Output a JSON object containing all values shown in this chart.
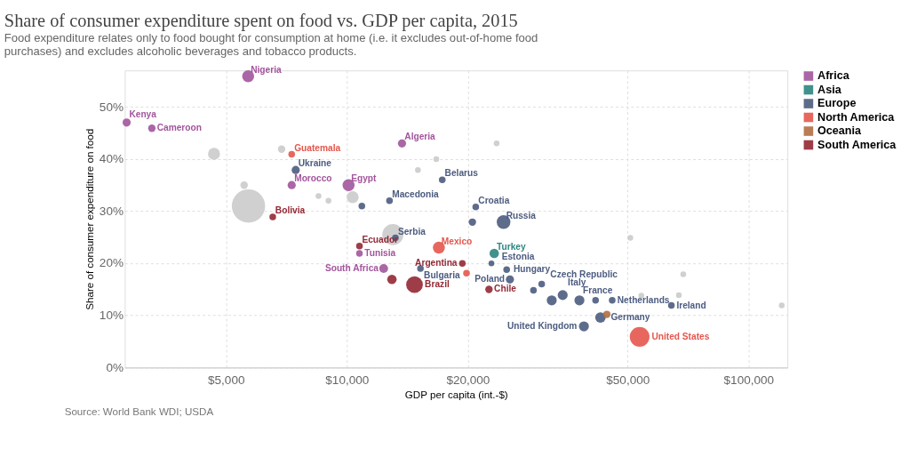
{
  "chart_data": {
    "type": "bubble",
    "title": "Share of consumer expenditure spent on food vs. GDP per capita, 2015",
    "subtitle": "Food expenditure relates only to food bought for consumption at home (i.e. it excludes out-of-home food\npurchases) and excludes alcoholic beverages and tobacco products.",
    "xlabel": "GDP per capita (int.-$)",
    "ylabel": "Share of consumer expenditure on food",
    "log": "x",
    "grid": true,
    "legend": "top right",
    "xlim": [
      2800,
      125000
    ],
    "ylim": [
      0,
      57
    ],
    "xticks": [
      {
        "value": 5000,
        "label": "$5,000"
      },
      {
        "value": 10000,
        "label": "$10,000"
      },
      {
        "value": 20000,
        "label": "$20,000"
      },
      {
        "value": 50000,
        "label": "$50,000"
      },
      {
        "value": 100000,
        "label": "$100,000"
      }
    ],
    "yticks": [
      {
        "value": 0,
        "label": "0%"
      },
      {
        "value": 10,
        "label": "10%"
      },
      {
        "value": 20,
        "label": "20%"
      },
      {
        "value": 30,
        "label": "30%"
      },
      {
        "value": 40,
        "label": "40%"
      },
      {
        "value": 50,
        "label": "50%"
      }
    ],
    "series": [
      {
        "color": "#d0d0d0",
        "x": [
          4670,
          6880,
          5550,
          5690,
          8500,
          9000,
          10340,
          13020,
          16700,
          15030,
          23600,
          50800,
          68800,
          54100,
          67100,
          121000
        ],
        "values": [
          41.0,
          41.9,
          35.0,
          31.0,
          32.9,
          32.0,
          32.7,
          25.5,
          40.0,
          37.9,
          43.0,
          24.9,
          17.9,
          13.8,
          13.9,
          11.9
        ],
        "sizes": [
          0.13,
          0.05,
          0.05,
          1,
          0.03,
          0.03,
          0.13,
          0.4,
          0.03,
          0.03,
          0.03,
          0.03,
          0.03,
          0.03,
          0.03,
          0.03
        ]
      },
      {
        "name": "Africa",
        "color": "#a2559c",
        "x": [
          5680,
          2830,
          3270,
          13720,
          7290,
          10100,
          10750,
          12350
        ],
        "values": [
          55.9,
          47.0,
          45.9,
          43.0,
          35.0,
          35.0,
          21.9,
          19.0
        ],
        "sizes": [
          0.13,
          0.06,
          0.05,
          0.06,
          0.06,
          0.13,
          0.04,
          0.07
        ]
      },
      {
        "name": "Asia",
        "color": "#2c8680",
        "x": [
          23280
        ],
        "values": [
          21.9
        ],
        "sizes": [
          0.08
        ]
      },
      {
        "name": "Europe",
        "color": "#4c5c80",
        "x": [
          7460,
          17280,
          12770,
          10900,
          20940,
          20540,
          24560,
          13210,
          15250,
          22910,
          25000,
          25470,
          30560,
          29150,
          34470,
          32370,
          37940,
          41620,
          45780,
          64270,
          42800,
          38930
        ],
        "values": [
          37.9,
          36.0,
          32.0,
          31.0,
          30.8,
          27.9,
          27.9,
          24.9,
          19.0,
          20.0,
          18.8,
          16.9,
          16.0,
          14.8,
          13.9,
          12.9,
          12.9,
          12.9,
          12.9,
          11.9,
          9.6,
          7.9
        ],
        "sizes": [
          0.06,
          0.04,
          0.04,
          0.04,
          0.04,
          0.05,
          0.17,
          0.04,
          0.04,
          0.03,
          0.04,
          0.06,
          0.04,
          0.04,
          0.09,
          0.09,
          0.09,
          0.04,
          0.04,
          0.04,
          0.1,
          0.09
        ]
      },
      {
        "name": "North America",
        "color": "#e4564d",
        "x": [
          7290,
          16950,
          53580,
          19860
        ],
        "values": [
          40.9,
          23.0,
          5.9,
          18.1
        ],
        "sizes": [
          0.04,
          0.13,
          0.35,
          0.04
        ]
      },
      {
        "name": "Oceania",
        "color": "#b16e43",
        "x": [
          44400
        ],
        "values": [
          10.2
        ],
        "sizes": [
          0.05
        ]
      },
      {
        "name": "South America",
        "color": "#932834",
        "x": [
          6540,
          10750,
          14740,
          12950,
          19390,
          22590
        ],
        "values": [
          28.9,
          23.3,
          15.9,
          16.9,
          20.0,
          15.0
        ],
        "sizes": [
          0.04,
          0.04,
          0.25,
          0.08,
          0.04,
          0.05
        ]
      }
    ],
    "annotations": [
      {
        "text": "Nigeria",
        "x": 5680,
        "y": 55.9
      },
      {
        "text": "Kenya",
        "x": 2830,
        "y": 47.0
      },
      {
        "text": "Cameroon",
        "x": 3270,
        "y": 45.9
      },
      {
        "text": "Algeria",
        "x": 13720,
        "y": 43.0
      },
      {
        "text": "Morocco",
        "x": 7290,
        "y": 35.0
      },
      {
        "text": "Egypt",
        "x": 10100,
        "y": 35.0
      },
      {
        "text": "Tunisia",
        "x": 10750,
        "y": 21.9
      },
      {
        "text": "South Africa",
        "x": 12350,
        "y": 19.0
      },
      {
        "text": "Turkey",
        "x": 23280,
        "y": 21.9
      },
      {
        "text": "Ukraine",
        "x": 7460,
        "y": 37.9
      },
      {
        "text": "Belarus",
        "x": 17280,
        "y": 36.0
      },
      {
        "text": "Macedonia",
        "x": 12770,
        "y": 32.0
      },
      {
        "text": "Croatia",
        "x": 20940,
        "y": 30.8
      },
      {
        "text": "Russia",
        "x": 24560,
        "y": 27.9
      },
      {
        "text": "Serbia",
        "x": 13210,
        "y": 24.9
      },
      {
        "text": "Bulgaria",
        "x": 15250,
        "y": 19.0
      },
      {
        "text": "Estonia",
        "x": 22910,
        "y": 20.0
      },
      {
        "text": "Hungary",
        "x": 25000,
        "y": 18.8
      },
      {
        "text": "Poland",
        "x": 25470,
        "y": 16.9
      },
      {
        "text": "Czech Republic",
        "x": 30560,
        "y": 16.0
      },
      {
        "text": "Italy",
        "x": 34470,
        "y": 13.9
      },
      {
        "text": "France",
        "x": 37940,
        "y": 12.9
      },
      {
        "text": "Netherlands",
        "x": 45780,
        "y": 12.9
      },
      {
        "text": "Ireland",
        "x": 64270,
        "y": 11.9
      },
      {
        "text": "Germany",
        "x": 42800,
        "y": 9.6
      },
      {
        "text": "United Kingdom",
        "x": 38930,
        "y": 7.9
      },
      {
        "text": "Guatemala",
        "x": 7290,
        "y": 40.9
      },
      {
        "text": "Mexico",
        "x": 16950,
        "y": 23.0
      },
      {
        "text": "United States",
        "x": 53580,
        "y": 5.9
      },
      {
        "text": "Bolivia",
        "x": 6540,
        "y": 28.9
      },
      {
        "text": "Ecuador",
        "x": 10750,
        "y": 23.3
      },
      {
        "text": "Brazil",
        "x": 14740,
        "y": 15.9
      },
      {
        "text": "Argentina",
        "x": 19390,
        "y": 20.0
      },
      {
        "text": "Chile",
        "x": 22590,
        "y": 15.0
      },
      "Source: World Bank WDI; USDA"
    ]
  }
}
